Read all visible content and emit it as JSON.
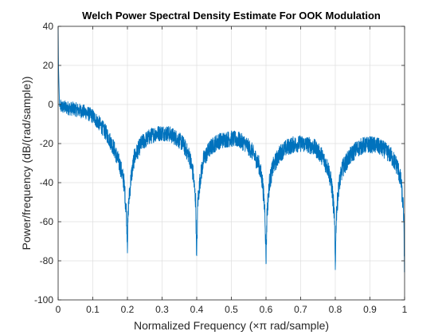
{
  "chart_data": {
    "type": "line",
    "title": "Welch Power Spectral Density Estimate For OOK Modulation",
    "xlabel": "Normalized Frequency  (×π rad/sample)",
    "ylabel": "Power/frequency (dB/(rad/sample))",
    "xlim": [
      0,
      1
    ],
    "ylim": [
      -100,
      40
    ],
    "xticks": [
      "0",
      "0.1",
      "0.2",
      "0.3",
      "0.4",
      "0.5",
      "0.6",
      "0.7",
      "0.8",
      "0.9",
      "1"
    ],
    "yticks": [
      "-100",
      "-80",
      "-60",
      "-40",
      "-20",
      "0",
      "20",
      "40"
    ],
    "grid": true,
    "series_color": "#0072BD",
    "series": [
      {
        "x": [
          0,
          0.001,
          0.004,
          0.02,
          0.05,
          0.08,
          0.1,
          0.12,
          0.14,
          0.16,
          0.18,
          0.19,
          0.197,
          0.2,
          0.203,
          0.21,
          0.22,
          0.24,
          0.26,
          0.28,
          0.3,
          0.32,
          0.34,
          0.36,
          0.38,
          0.39,
          0.397,
          0.4,
          0.403,
          0.41,
          0.42,
          0.44,
          0.46,
          0.48,
          0.5,
          0.52,
          0.54,
          0.56,
          0.58,
          0.59,
          0.597,
          0.6,
          0.603,
          0.61,
          0.62,
          0.64,
          0.66,
          0.68,
          0.7,
          0.72,
          0.74,
          0.76,
          0.78,
          0.79,
          0.797,
          0.8,
          0.803,
          0.81,
          0.82,
          0.84,
          0.86,
          0.88,
          0.9,
          0.92,
          0.94,
          0.96,
          0.98,
          0.99,
          0.997,
          1
        ],
        "y": [
          40,
          20,
          -1,
          -1.5,
          -2.5,
          -4,
          -6,
          -10,
          -15,
          -22,
          -32,
          -40,
          -55,
          -71,
          -52,
          -38,
          -27,
          -20,
          -17,
          -15,
          -14.5,
          -15,
          -17,
          -20,
          -27,
          -36,
          -50,
          -79,
          -50,
          -38,
          -28,
          -22,
          -19,
          -18,
          -17.5,
          -18,
          -20,
          -24,
          -31,
          -40,
          -55,
          -80,
          -55,
          -40,
          -32,
          -25,
          -22,
          -20.5,
          -20,
          -20.5,
          -22,
          -26,
          -33,
          -42,
          -56,
          -82,
          -56,
          -42,
          -33,
          -27,
          -23,
          -21,
          -20.5,
          -21,
          -23,
          -26,
          -32,
          -40,
          -55,
          -85
        ]
      }
    ]
  }
}
